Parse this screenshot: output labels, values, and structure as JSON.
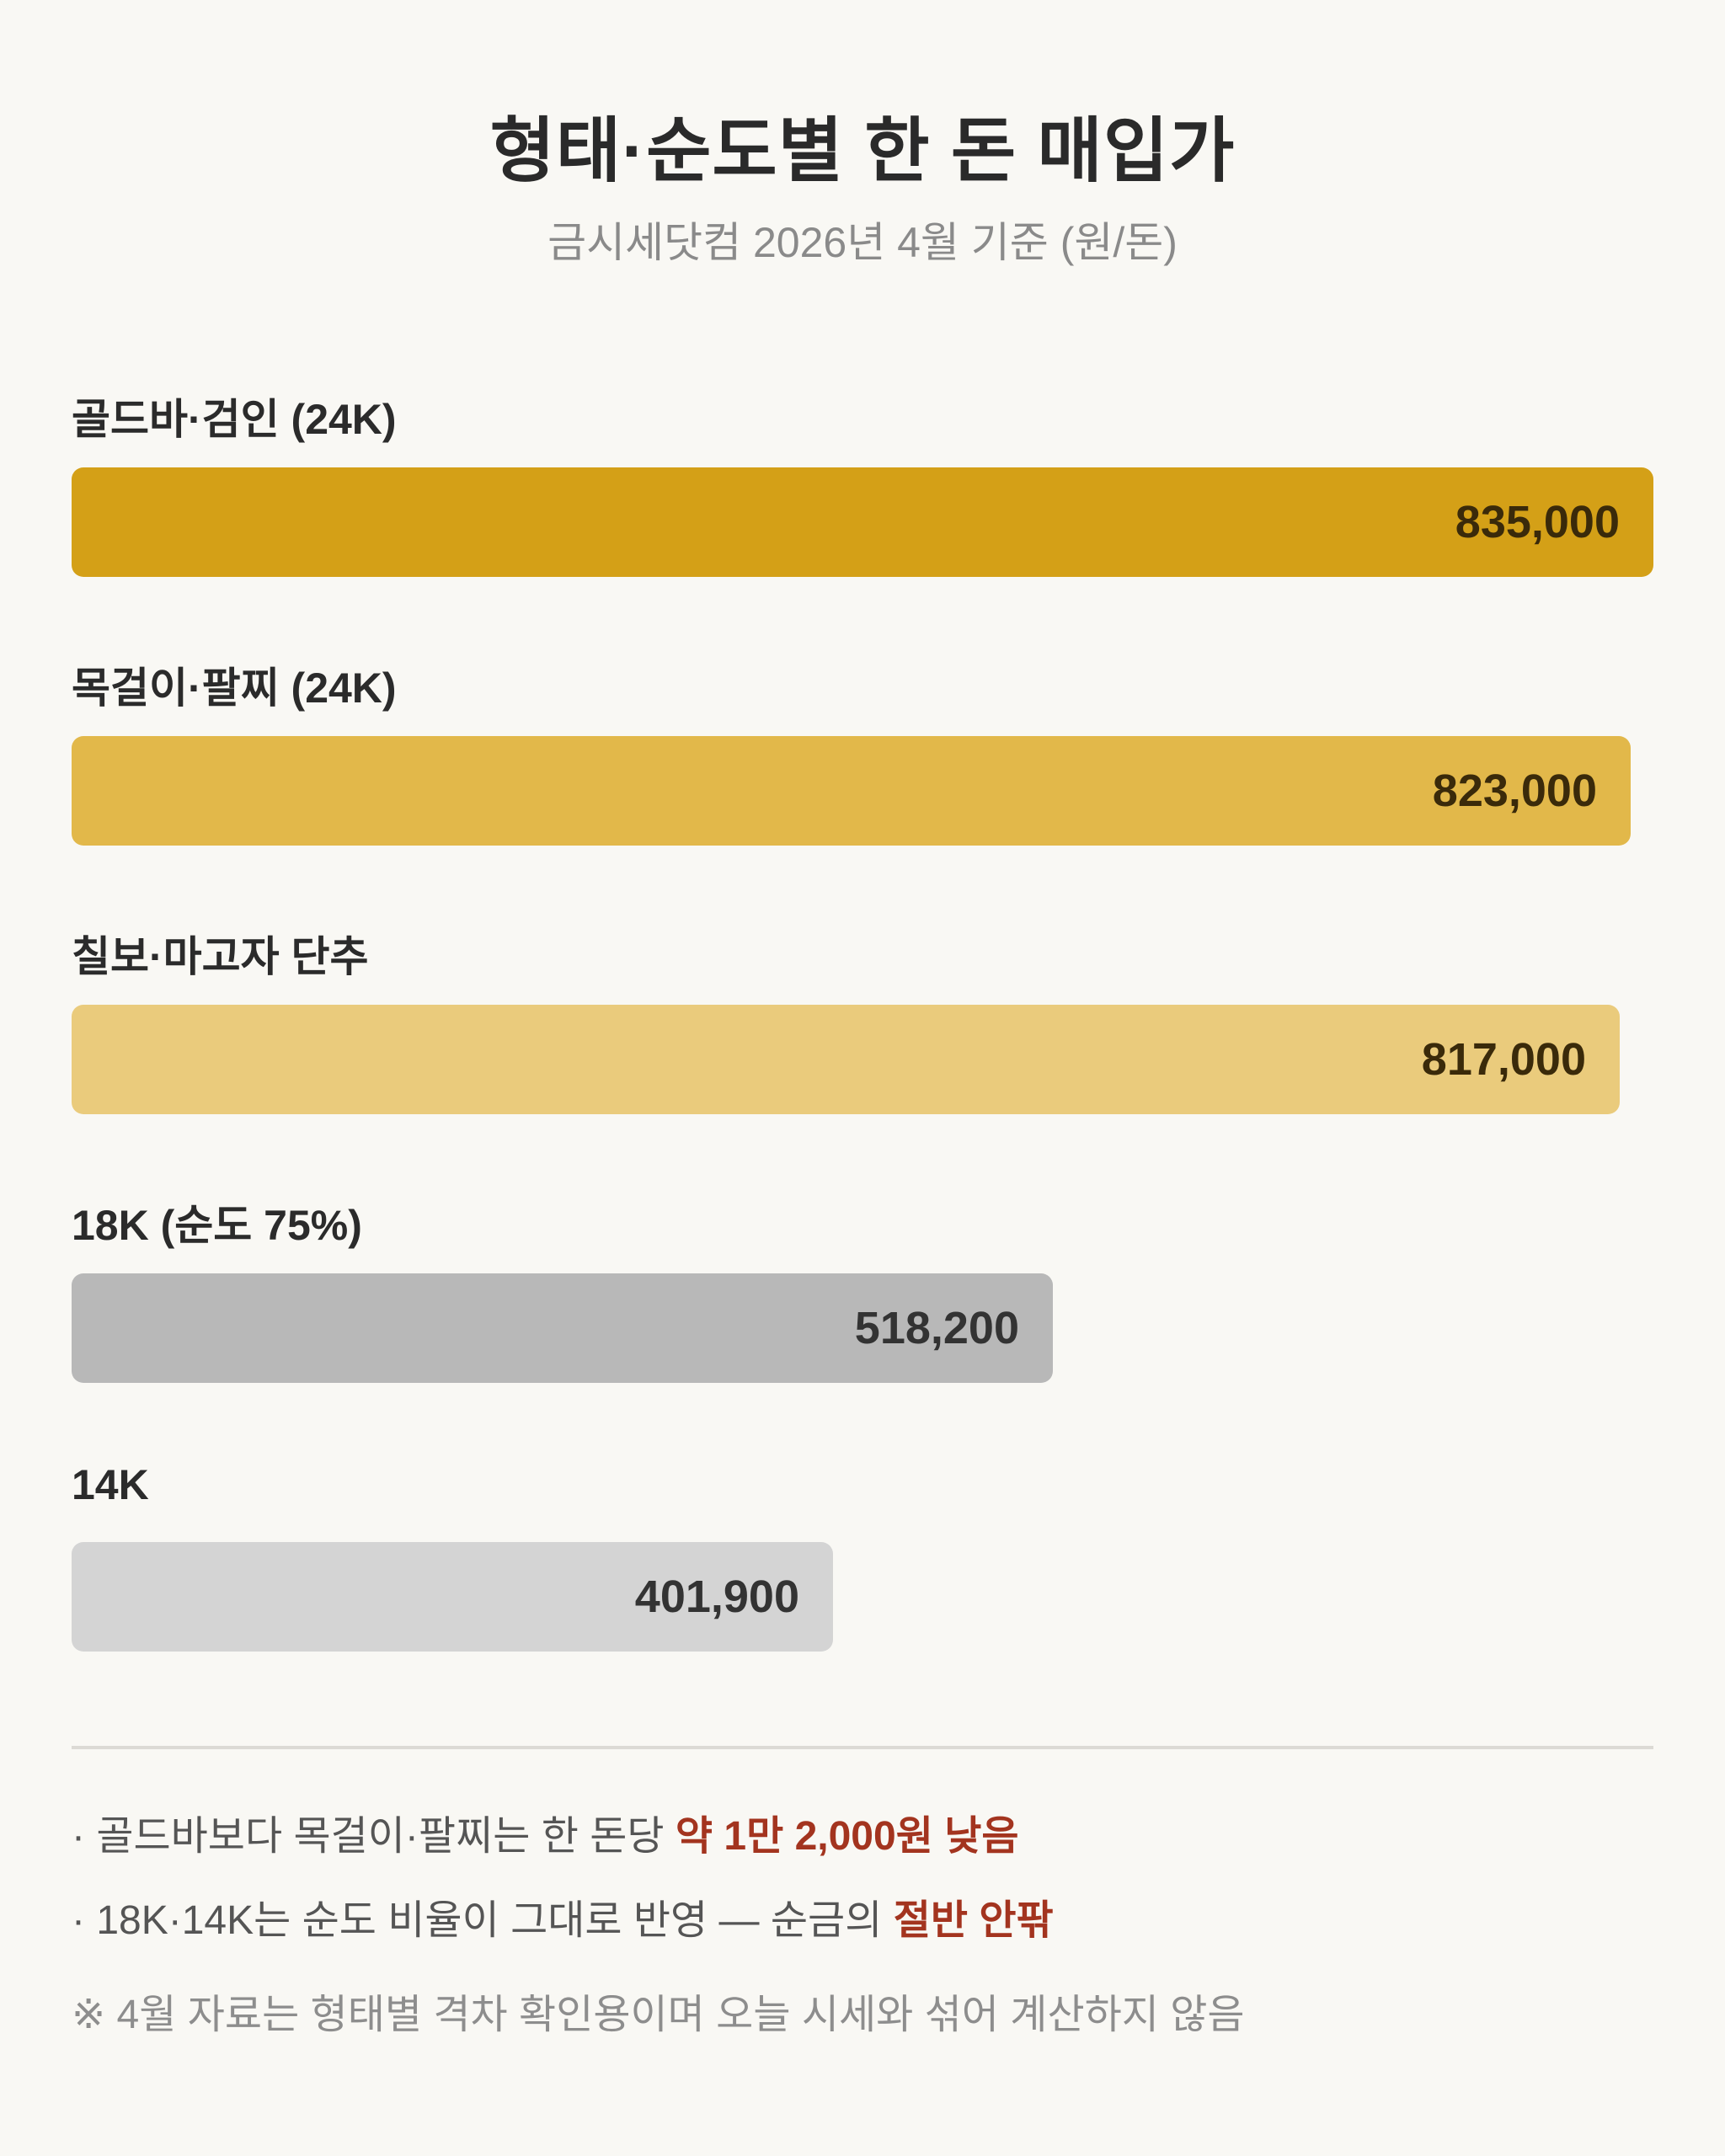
{
  "header": {
    "title": "형태·순도별 한 돈 매입가",
    "subtitle": "금시세닷컴 2026년 4월 기준 (원/돈)"
  },
  "chart_data": {
    "type": "bar",
    "orientation": "horizontal",
    "categories": [
      "골드바·검인 (24K)",
      "목걸이·팔찌 (24K)",
      "칠보·마고자 단추",
      "18K (순도 75%)",
      "14K"
    ],
    "values": [
      835000,
      823000,
      817000,
      518200,
      401900
    ],
    "value_labels": [
      "835,000",
      "823,000",
      "817,000",
      "518,200",
      "401,900"
    ],
    "colors": [
      "#d4a017",
      "#e2b84a",
      "#eacb7c",
      "#b8b8b8",
      "#d4d4d4"
    ],
    "value_label_colors": [
      "#3a2a0a",
      "#3a2a0a",
      "#3a2a0a",
      "#333333",
      "#333333"
    ],
    "title": "형태·순도별 한 돈 매입가",
    "subtitle": "금시세닷컴 2026년 4월 기준 (원/돈)",
    "xlim": [
      0,
      835000
    ],
    "grid": false,
    "legend": "none"
  },
  "notes": [
    {
      "prefix": "· 골드바보다 목걸이·팔찌는 한 돈당 ",
      "highlight": "약 1만 2,000원 낮음"
    },
    {
      "prefix": "· 18K·14K는 순도 비율이 그대로 반영 — 순금의 ",
      "highlight": "절반 안팎"
    }
  ],
  "footnote": "※ 4월 자료는 형태별 격차 확인용이며 오늘 시세와 섞어 계산하지 않음",
  "colors": {
    "background": "#f9f8f4",
    "highlight": "#a3341f"
  }
}
